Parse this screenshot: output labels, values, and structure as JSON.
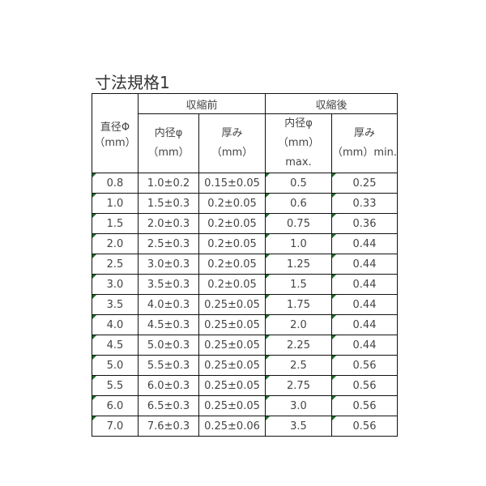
{
  "title": "寸法規格1",
  "header": {
    "diameter": "直径Φ",
    "diameter_unit": "（mm）",
    "before": "収縮前",
    "after": "収縮後",
    "before_inner": "内径φ",
    "before_inner_unit": "（mm）",
    "before_thick": "厚み",
    "before_thick_unit": "（mm）",
    "after_inner": "内径φ",
    "after_inner_unit": "（mm）max.",
    "after_thick": "厚み",
    "after_thick_unit": "（mm）min."
  },
  "rows": [
    [
      "0.8",
      "1.0±0.2",
      "0.15±0.05",
      "0.5",
      "0.25"
    ],
    [
      "1.0",
      "1.5±0.3",
      "0.2±0.05",
      "0.6",
      "0.33"
    ],
    [
      "1.5",
      "2.0±0.3",
      "0.2±0.05",
      "0.75",
      "0.36"
    ],
    [
      "2.0",
      "2.5±0.3",
      "0.2±0.05",
      "1.0",
      "0.44"
    ],
    [
      "2.5",
      "3.0±0.3",
      "0.2±0.05",
      "1.25",
      "0.44"
    ],
    [
      "3.0",
      "3.5±0.3",
      "0.2±0.05",
      "1.5",
      "0.44"
    ],
    [
      "3.5",
      "4.0±0.3",
      "0.25±0.05",
      "1.75",
      "0.44"
    ],
    [
      "4.0",
      "4.5±0.3",
      "0.25±0.05",
      "2.0",
      "0.44"
    ],
    [
      "4.5",
      "5.0±0.3",
      "0.25±0.05",
      "2.25",
      "0.44"
    ],
    [
      "5.0",
      "5.5±0.3",
      "0.25±0.05",
      "2.5",
      "0.56"
    ],
    [
      "5.5",
      "6.0±0.3",
      "0.25±0.05",
      "2.75",
      "0.56"
    ],
    [
      "6.0",
      "6.5±0.3",
      "0.25±0.05",
      "3.0",
      "0.56"
    ],
    [
      "7.0",
      "7.6±0.3",
      "0.25±0.06",
      "3.5",
      "0.56"
    ]
  ],
  "colors": {
    "marker": "#1e6b2a",
    "border": "#111111"
  }
}
